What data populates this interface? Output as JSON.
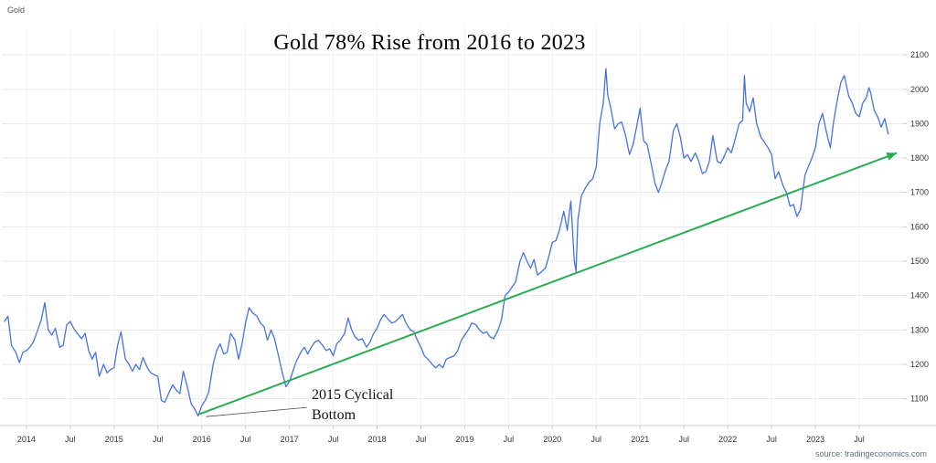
{
  "header": {
    "instrument_label": "Gold"
  },
  "footer": {
    "source": "source: tradingeconomics.com"
  },
  "chart_data": {
    "type": "line",
    "title": "Gold 78% Rise from 2016 to 2023",
    "xlabel": "",
    "ylabel": "",
    "legend": "none",
    "grid": true,
    "xlim": [
      2013.72,
      2024.0
    ],
    "ylim": [
      1030,
      2180
    ],
    "y_ticks": [
      2100,
      2000,
      1900,
      1800,
      1700,
      1600,
      1500,
      1400,
      1300,
      1200,
      1100
    ],
    "x_ticks": [
      {
        "x": 2014.0,
        "label": "2014"
      },
      {
        "x": 2014.5,
        "label": "Jul"
      },
      {
        "x": 2015.0,
        "label": "2015"
      },
      {
        "x": 2015.5,
        "label": "Jul"
      },
      {
        "x": 2016.0,
        "label": "2016"
      },
      {
        "x": 2016.5,
        "label": "Jul"
      },
      {
        "x": 2017.0,
        "label": "2017"
      },
      {
        "x": 2017.5,
        "label": "Jul"
      },
      {
        "x": 2018.0,
        "label": "2018"
      },
      {
        "x": 2018.5,
        "label": "Jul"
      },
      {
        "x": 2019.0,
        "label": "2019"
      },
      {
        "x": 2019.5,
        "label": "Jul"
      },
      {
        "x": 2020.0,
        "label": "2020"
      },
      {
        "x": 2020.5,
        "label": "Jul"
      },
      {
        "x": 2021.0,
        "label": "2021"
      },
      {
        "x": 2021.5,
        "label": "Jul"
      },
      {
        "x": 2022.0,
        "label": "2022"
      },
      {
        "x": 2022.5,
        "label": "Jul"
      },
      {
        "x": 2023.0,
        "label": "2023"
      },
      {
        "x": 2023.5,
        "label": "Jul"
      }
    ],
    "series": [
      {
        "name": "Gold",
        "color": "#4472e2",
        "points": [
          [
            2013.75,
            1325
          ],
          [
            2013.79,
            1340
          ],
          [
            2013.83,
            1255
          ],
          [
            2013.88,
            1235
          ],
          [
            2013.92,
            1205
          ],
          [
            2013.96,
            1235
          ],
          [
            2014.0,
            1240
          ],
          [
            2014.04,
            1250
          ],
          [
            2014.08,
            1265
          ],
          [
            2014.13,
            1300
          ],
          [
            2014.17,
            1330
          ],
          [
            2014.21,
            1380
          ],
          [
            2014.25,
            1300
          ],
          [
            2014.29,
            1285
          ],
          [
            2014.33,
            1305
          ],
          [
            2014.38,
            1250
          ],
          [
            2014.42,
            1255
          ],
          [
            2014.46,
            1315
          ],
          [
            2014.5,
            1325
          ],
          [
            2014.54,
            1305
          ],
          [
            2014.58,
            1290
          ],
          [
            2014.63,
            1275
          ],
          [
            2014.67,
            1290
          ],
          [
            2014.71,
            1240
          ],
          [
            2014.75,
            1215
          ],
          [
            2014.79,
            1235
          ],
          [
            2014.83,
            1165
          ],
          [
            2014.88,
            1200
          ],
          [
            2014.92,
            1175
          ],
          [
            2014.96,
            1185
          ],
          [
            2015.0,
            1190
          ],
          [
            2015.04,
            1255
          ],
          [
            2015.08,
            1295
          ],
          [
            2015.13,
            1215
          ],
          [
            2015.17,
            1200
          ],
          [
            2015.21,
            1180
          ],
          [
            2015.25,
            1200
          ],
          [
            2015.29,
            1185
          ],
          [
            2015.33,
            1220
          ],
          [
            2015.38,
            1190
          ],
          [
            2015.42,
            1175
          ],
          [
            2015.46,
            1170
          ],
          [
            2015.5,
            1165
          ],
          [
            2015.54,
            1095
          ],
          [
            2015.58,
            1090
          ],
          [
            2015.63,
            1120
          ],
          [
            2015.67,
            1140
          ],
          [
            2015.71,
            1125
          ],
          [
            2015.75,
            1115
          ],
          [
            2015.79,
            1180
          ],
          [
            2015.83,
            1140
          ],
          [
            2015.88,
            1085
          ],
          [
            2015.92,
            1070
          ],
          [
            2015.96,
            1050
          ],
          [
            2016.0,
            1080
          ],
          [
            2016.04,
            1095
          ],
          [
            2016.08,
            1120
          ],
          [
            2016.13,
            1200
          ],
          [
            2016.17,
            1240
          ],
          [
            2016.21,
            1260
          ],
          [
            2016.25,
            1230
          ],
          [
            2016.29,
            1235
          ],
          [
            2016.33,
            1290
          ],
          [
            2016.38,
            1270
          ],
          [
            2016.42,
            1215
          ],
          [
            2016.46,
            1260
          ],
          [
            2016.5,
            1320
          ],
          [
            2016.54,
            1365
          ],
          [
            2016.58,
            1350
          ],
          [
            2016.63,
            1340
          ],
          [
            2016.67,
            1320
          ],
          [
            2016.71,
            1310
          ],
          [
            2016.75,
            1270
          ],
          [
            2016.79,
            1300
          ],
          [
            2016.83,
            1275
          ],
          [
            2016.88,
            1220
          ],
          [
            2016.92,
            1175
          ],
          [
            2016.96,
            1135
          ],
          [
            2017.0,
            1150
          ],
          [
            2017.04,
            1180
          ],
          [
            2017.08,
            1210
          ],
          [
            2017.13,
            1235
          ],
          [
            2017.17,
            1250
          ],
          [
            2017.21,
            1230
          ],
          [
            2017.25,
            1250
          ],
          [
            2017.29,
            1265
          ],
          [
            2017.33,
            1270
          ],
          [
            2017.38,
            1255
          ],
          [
            2017.42,
            1240
          ],
          [
            2017.46,
            1245
          ],
          [
            2017.5,
            1225
          ],
          [
            2017.54,
            1260
          ],
          [
            2017.58,
            1270
          ],
          [
            2017.63,
            1290
          ],
          [
            2017.67,
            1335
          ],
          [
            2017.71,
            1300
          ],
          [
            2017.75,
            1280
          ],
          [
            2017.79,
            1270
          ],
          [
            2017.83,
            1275
          ],
          [
            2017.88,
            1250
          ],
          [
            2017.92,
            1265
          ],
          [
            2017.96,
            1290
          ],
          [
            2018.0,
            1305
          ],
          [
            2018.04,
            1330
          ],
          [
            2018.08,
            1345
          ],
          [
            2018.13,
            1330
          ],
          [
            2018.17,
            1320
          ],
          [
            2018.21,
            1325
          ],
          [
            2018.25,
            1335
          ],
          [
            2018.29,
            1345
          ],
          [
            2018.33,
            1320
          ],
          [
            2018.38,
            1300
          ],
          [
            2018.42,
            1295
          ],
          [
            2018.46,
            1270
          ],
          [
            2018.5,
            1250
          ],
          [
            2018.54,
            1225
          ],
          [
            2018.58,
            1215
          ],
          [
            2018.63,
            1200
          ],
          [
            2018.67,
            1190
          ],
          [
            2018.71,
            1200
          ],
          [
            2018.75,
            1190
          ],
          [
            2018.79,
            1215
          ],
          [
            2018.83,
            1220
          ],
          [
            2018.88,
            1225
          ],
          [
            2018.92,
            1240
          ],
          [
            2018.96,
            1270
          ],
          [
            2019.0,
            1285
          ],
          [
            2019.04,
            1300
          ],
          [
            2019.08,
            1320
          ],
          [
            2019.13,
            1315
          ],
          [
            2019.17,
            1300
          ],
          [
            2019.21,
            1290
          ],
          [
            2019.25,
            1295
          ],
          [
            2019.29,
            1280
          ],
          [
            2019.33,
            1275
          ],
          [
            2019.38,
            1300
          ],
          [
            2019.42,
            1330
          ],
          [
            2019.46,
            1400
          ],
          [
            2019.5,
            1410
          ],
          [
            2019.54,
            1425
          ],
          [
            2019.58,
            1440
          ],
          [
            2019.63,
            1500
          ],
          [
            2019.67,
            1525
          ],
          [
            2019.71,
            1500
          ],
          [
            2019.75,
            1480
          ],
          [
            2019.79,
            1505
          ],
          [
            2019.83,
            1460
          ],
          [
            2019.88,
            1470
          ],
          [
            2019.92,
            1480
          ],
          [
            2019.96,
            1515
          ],
          [
            2020.0,
            1555
          ],
          [
            2020.04,
            1560
          ],
          [
            2020.08,
            1590
          ],
          [
            2020.13,
            1645
          ],
          [
            2020.17,
            1590
          ],
          [
            2020.21,
            1675
          ],
          [
            2020.25,
            1500
          ],
          [
            2020.27,
            1470
          ],
          [
            2020.29,
            1620
          ],
          [
            2020.33,
            1690
          ],
          [
            2020.38,
            1715
          ],
          [
            2020.42,
            1730
          ],
          [
            2020.46,
            1740
          ],
          [
            2020.5,
            1775
          ],
          [
            2020.54,
            1900
          ],
          [
            2020.58,
            1960
          ],
          [
            2020.61,
            2060
          ],
          [
            2020.63,
            1985
          ],
          [
            2020.67,
            1940
          ],
          [
            2020.71,
            1885
          ],
          [
            2020.75,
            1900
          ],
          [
            2020.79,
            1905
          ],
          [
            2020.83,
            1870
          ],
          [
            2020.88,
            1810
          ],
          [
            2020.92,
            1840
          ],
          [
            2020.96,
            1890
          ],
          [
            2021.0,
            1945
          ],
          [
            2021.04,
            1850
          ],
          [
            2021.08,
            1840
          ],
          [
            2021.13,
            1780
          ],
          [
            2021.17,
            1725
          ],
          [
            2021.21,
            1700
          ],
          [
            2021.25,
            1730
          ],
          [
            2021.29,
            1765
          ],
          [
            2021.33,
            1790
          ],
          [
            2021.38,
            1880
          ],
          [
            2021.42,
            1900
          ],
          [
            2021.46,
            1860
          ],
          [
            2021.5,
            1800
          ],
          [
            2021.54,
            1810
          ],
          [
            2021.58,
            1790
          ],
          [
            2021.63,
            1815
          ],
          [
            2021.67,
            1790
          ],
          [
            2021.71,
            1755
          ],
          [
            2021.75,
            1760
          ],
          [
            2021.79,
            1790
          ],
          [
            2021.83,
            1865
          ],
          [
            2021.88,
            1790
          ],
          [
            2021.92,
            1785
          ],
          [
            2021.96,
            1805
          ],
          [
            2022.0,
            1830
          ],
          [
            2022.04,
            1815
          ],
          [
            2022.08,
            1850
          ],
          [
            2022.13,
            1900
          ],
          [
            2022.17,
            1910
          ],
          [
            2022.19,
            2040
          ],
          [
            2022.21,
            1960
          ],
          [
            2022.25,
            1935
          ],
          [
            2022.29,
            1975
          ],
          [
            2022.33,
            1900
          ],
          [
            2022.38,
            1860
          ],
          [
            2022.42,
            1845
          ],
          [
            2022.46,
            1830
          ],
          [
            2022.5,
            1810
          ],
          [
            2022.54,
            1740
          ],
          [
            2022.58,
            1760
          ],
          [
            2022.63,
            1720
          ],
          [
            2022.67,
            1700
          ],
          [
            2022.71,
            1660
          ],
          [
            2022.75,
            1665
          ],
          [
            2022.79,
            1630
          ],
          [
            2022.83,
            1650
          ],
          [
            2022.88,
            1750
          ],
          [
            2022.92,
            1775
          ],
          [
            2022.96,
            1800
          ],
          [
            2023.0,
            1830
          ],
          [
            2023.04,
            1900
          ],
          [
            2023.08,
            1930
          ],
          [
            2023.13,
            1870
          ],
          [
            2023.17,
            1830
          ],
          [
            2023.21,
            1910
          ],
          [
            2023.25,
            1970
          ],
          [
            2023.29,
            2020
          ],
          [
            2023.33,
            2040
          ],
          [
            2023.38,
            1980
          ],
          [
            2023.42,
            1960
          ],
          [
            2023.46,
            1930
          ],
          [
            2023.5,
            1920
          ],
          [
            2023.54,
            1960
          ],
          [
            2023.58,
            1975
          ],
          [
            2023.61,
            2005
          ],
          [
            2023.63,
            1990
          ],
          [
            2023.67,
            1940
          ],
          [
            2023.71,
            1920
          ],
          [
            2023.75,
            1890
          ],
          [
            2023.79,
            1915
          ],
          [
            2023.83,
            1870
          ]
        ]
      }
    ],
    "trend_arrow": {
      "from": [
        2015.97,
        1055
      ],
      "to": [
        2023.93,
        1815
      ],
      "color": "#2bab54"
    },
    "annotation": {
      "lines": [
        "2015 Cyclical",
        "Bottom"
      ],
      "pointer_from": [
        2017.2,
        1075
      ],
      "pointer_to": [
        2016.05,
        1048
      ],
      "color": "#111111"
    },
    "colors": {
      "h_grid": "#e9e9e9",
      "v_grid": "#f2f2f2",
      "axis": "#cccccc",
      "tick_text": "#333333",
      "source_text": "#5c6f82"
    }
  }
}
